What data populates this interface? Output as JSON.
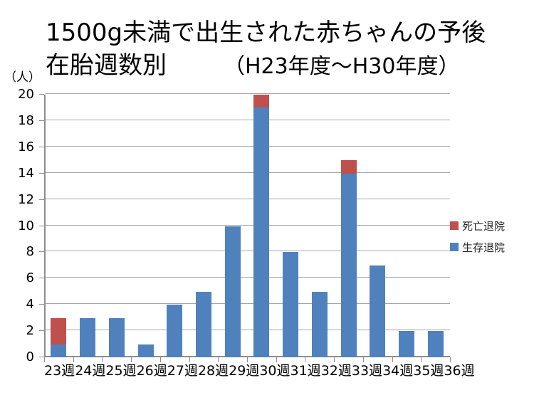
{
  "slide": {
    "title_line1": "1500g未満で出生された赤ちゃんの予後",
    "title_line2": "在胎週数別",
    "period": "（H23年度～H30年度）",
    "y_unit": "（人）"
  },
  "legend": {
    "items": [
      {
        "key": "died",
        "label": "死亡退院",
        "color": "#C0504D"
      },
      {
        "key": "survived",
        "label": "生存退院",
        "color": "#4F81BD"
      }
    ]
  },
  "chart_data": {
    "type": "bar",
    "stacked": true,
    "title": "1500g未満で出生された赤ちゃんの予後 在胎週数別（H23年度～H30年度）",
    "xlabel": "",
    "ylabel": "（人）",
    "ylim": [
      0,
      20
    ],
    "yticks": [
      0,
      2,
      4,
      6,
      8,
      10,
      12,
      14,
      16,
      18,
      20
    ],
    "grid": true,
    "legend_position": "right",
    "categories": [
      "23週",
      "24週",
      "25週",
      "26週",
      "27週",
      "28週",
      "29週",
      "30週",
      "31週",
      "32週",
      "33週",
      "34週",
      "35週",
      "36週"
    ],
    "series": [
      {
        "name": "生存退院",
        "color": "#4F81BD",
        "values": [
          1,
          3,
          3,
          1,
          4,
          5,
          10,
          19,
          8,
          5,
          14,
          7,
          2,
          2
        ]
      },
      {
        "name": "死亡退院",
        "color": "#C0504D",
        "values": [
          2,
          0,
          0,
          0,
          0,
          0,
          0,
          1,
          0,
          0,
          1,
          0,
          0,
          0
        ]
      }
    ],
    "totals": [
      3,
      3,
      3,
      1,
      4,
      5,
      10,
      20,
      8,
      5,
      15,
      7,
      2,
      2
    ]
  }
}
